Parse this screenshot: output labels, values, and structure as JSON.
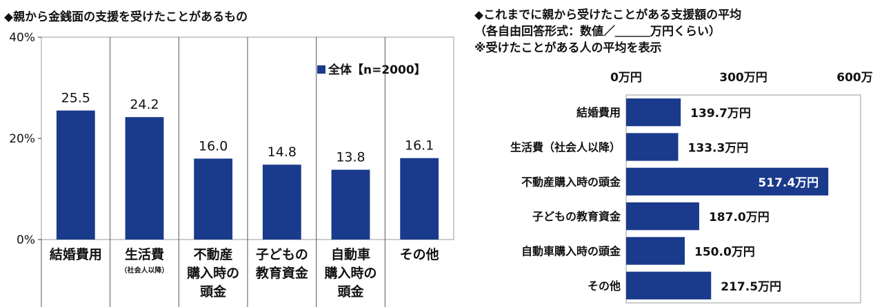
{
  "chart_data": [
    {
      "type": "bar",
      "title": "◆親から金銭面の支援を受けたことがあるもの",
      "categories": [
        "結婚費用",
        "生活費",
        "不動産購入時の頭金",
        "子どもの教育資金",
        "自動車購入時の頭金",
        "その他"
      ],
      "category_lines": [
        [
          "結婚費用"
        ],
        [
          "生活費"
        ],
        [
          "不動産",
          "購入時の",
          "頭金"
        ],
        [
          "子どもの",
          "教育資金"
        ],
        [
          "自動車",
          "購入時の",
          "頭金"
        ],
        [
          "その他"
        ]
      ],
      "category_note": [
        "",
        "（社会人以降）",
        "",
        "",
        "",
        ""
      ],
      "series": [
        {
          "name": "全体【n=2000】",
          "values": [
            25.5,
            24.2,
            16.0,
            14.8,
            13.8,
            16.1
          ]
        }
      ],
      "data_labels": [
        "25.5",
        "24.2",
        "16.0",
        "14.8",
        "13.8",
        "16.1"
      ],
      "ylim": [
        0,
        40
      ],
      "yticks": [
        0,
        20,
        40
      ],
      "ytick_labels": [
        "0%",
        "20%",
        "40%"
      ],
      "grid": false,
      "legend": "top-right",
      "bar_color": "#1a3a8c"
    },
    {
      "type": "bar",
      "orientation": "horizontal",
      "title_lines": [
        "◆これまでに親から受けたことがある支援額の平均",
        "（各自由回答形式：数値／＿＿＿万円くらい）",
        "※受けたことがある人の平均を表示"
      ],
      "categories": [
        "結婚費用",
        "生活費（社会人以降）",
        "不動産購入時の頭金",
        "子どもの教育資金",
        "自動車購入時の頭金",
        "その他"
      ],
      "values": [
        139.7,
        133.3,
        517.4,
        187.0,
        150.0,
        217.5
      ],
      "data_labels": [
        "139.7万円",
        "133.3万円",
        "517.4万円",
        "187.0万円",
        "150.0万円",
        "217.5万円"
      ],
      "xlim": [
        0,
        600
      ],
      "xticks": [
        0,
        300,
        600
      ],
      "xtick_labels": [
        "0万円",
        "300万円",
        "600万円"
      ],
      "grid": false,
      "bar_color": "#1a3a8c"
    }
  ]
}
